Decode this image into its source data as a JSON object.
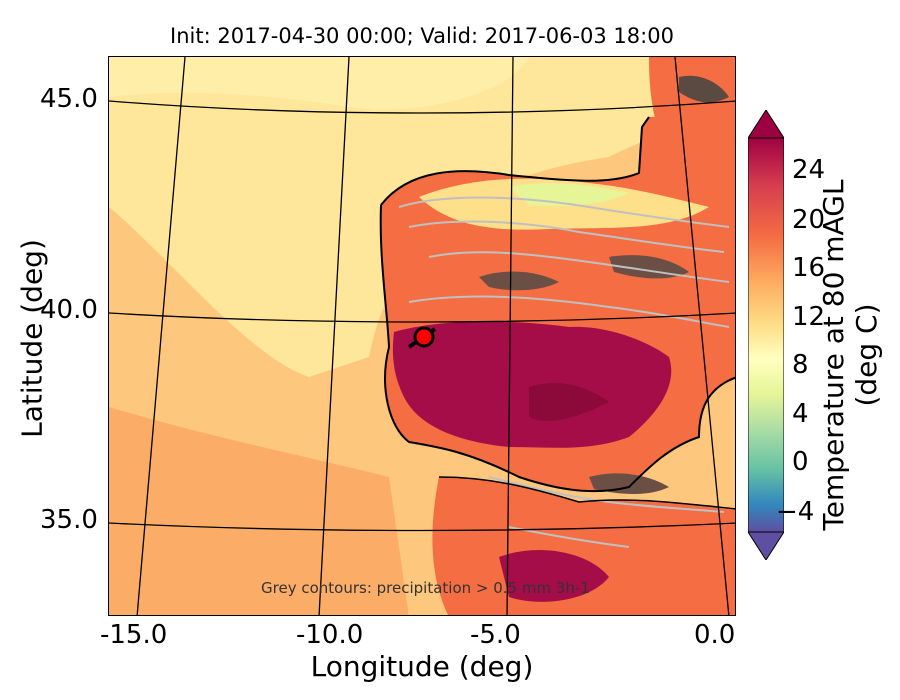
{
  "title": "Init: 2017-04-30 00:00; Valid: 2017-06-03 18:00",
  "x_axis": {
    "label": "Longitude (deg)",
    "ticks": [
      {
        "value": -15.0,
        "label": "-15.0"
      },
      {
        "value": -10.0,
        "label": "-10.0"
      },
      {
        "value": -5.0,
        "label": "-5.0"
      },
      {
        "value": 0.0,
        "label": "0.0"
      }
    ]
  },
  "y_axis": {
    "label": "Latitude (deg)",
    "ticks": [
      {
        "value": 45.0,
        "label": "45.0"
      },
      {
        "value": 40.0,
        "label": "40.0"
      },
      {
        "value": 35.0,
        "label": "35.0"
      }
    ]
  },
  "colorbar": {
    "title": "Temperature at 80 mAGL (deg C)",
    "ticks": [
      "24",
      "20",
      "16",
      "12",
      "8",
      "4",
      "0",
      "−4"
    ],
    "range": [
      -6,
      27
    ],
    "colormap": "Spectral_r"
  },
  "annotation": "Grey contours: precipitation > 0.5 mm 3h-1",
  "marker": {
    "lon": -7.6,
    "lat": 39.4,
    "color": "#ff0000"
  },
  "colors": {
    "ocean_light": "#fee79a",
    "ocean_mid": "#fdc77d",
    "ocean_warm": "#fbad68",
    "land_hot": "#a50d48",
    "land_warm": "#f46d43",
    "land_cool": "#e6f598",
    "precip_contour": "#c0c0c0"
  }
}
